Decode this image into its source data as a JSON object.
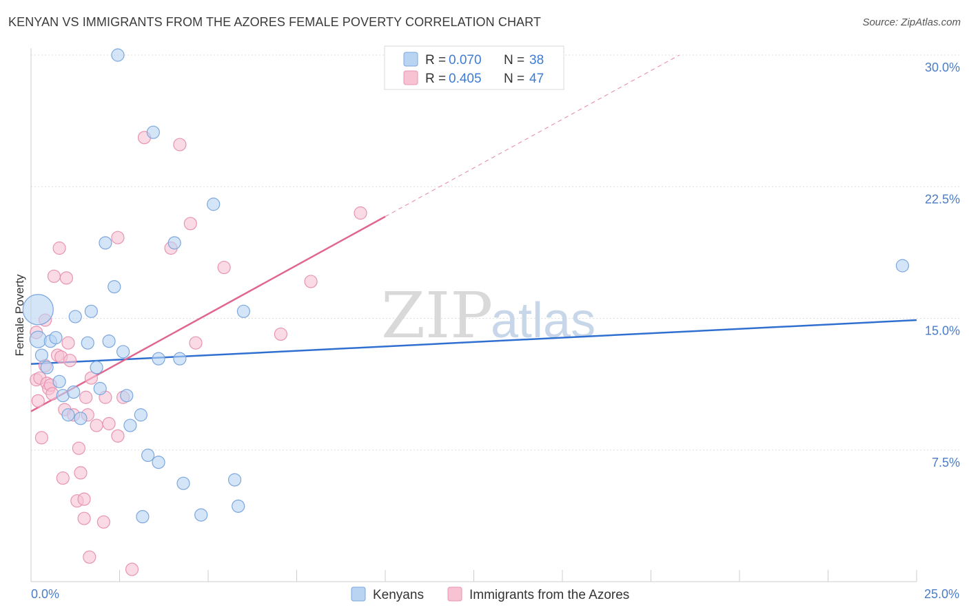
{
  "header": {
    "title": "KENYAN VS IMMIGRANTS FROM THE AZORES FEMALE POVERTY CORRELATION CHART",
    "source": "Source: ZipAtlas.com"
  },
  "watermark": {
    "zip": "ZIP",
    "atlas": "atlas"
  },
  "legend": {
    "r_label": "R =",
    "n_label": "N =",
    "entries": [
      {
        "r": "0.070",
        "n": "38"
      },
      {
        "r": "0.405",
        "n": "47"
      }
    ]
  },
  "colors": {
    "kenyan_fill": "#b9d3f3",
    "kenyan_stroke": "#7ba7de",
    "kenyan_line": "#2f6fd0",
    "azores_fill": "#f7c3d3",
    "azores_stroke": "#e893b0",
    "azores_line": "#e0668f",
    "grid": "#dddddd",
    "axis": "#cccccc"
  },
  "chart_data": {
    "type": "scatter",
    "title": "KENYAN VS IMMIGRANTS FROM THE AZORES FEMALE POVERTY CORRELATION CHART",
    "xlabel": "",
    "ylabel": "Female Poverty",
    "xlim": [
      0,
      25
    ],
    "ylim": [
      0,
      30
    ],
    "x_tick_labels": [
      "0.0%",
      "25.0%"
    ],
    "y_ticks": [
      7.5,
      15.0,
      22.5,
      30.0
    ],
    "y_tick_labels": [
      "7.5%",
      "15.0%",
      "22.5%",
      "30.0%"
    ],
    "legend_position": "top-center",
    "series": [
      {
        "name": "Kenyans",
        "r": 0.07,
        "n": 38,
        "points": [
          [
            0.2,
            15.5
          ],
          [
            0.2,
            13.8
          ],
          [
            0.3,
            12.9
          ],
          [
            0.45,
            12.2
          ],
          [
            0.55,
            13.7
          ],
          [
            0.7,
            13.9
          ],
          [
            0.8,
            11.4
          ],
          [
            0.9,
            10.6
          ],
          [
            1.05,
            9.5
          ],
          [
            1.2,
            10.8
          ],
          [
            1.25,
            15.1
          ],
          [
            1.4,
            9.3
          ],
          [
            1.6,
            13.6
          ],
          [
            1.7,
            15.4
          ],
          [
            1.85,
            12.2
          ],
          [
            1.95,
            11.0
          ],
          [
            2.1,
            19.3
          ],
          [
            2.2,
            13.7
          ],
          [
            2.35,
            16.8
          ],
          [
            2.45,
            30.0
          ],
          [
            2.6,
            13.1
          ],
          [
            2.7,
            10.6
          ],
          [
            2.8,
            8.9
          ],
          [
            3.1,
            9.5
          ],
          [
            3.15,
            3.7
          ],
          [
            3.3,
            7.2
          ],
          [
            3.45,
            25.6
          ],
          [
            3.6,
            6.8
          ],
          [
            3.6,
            12.7
          ],
          [
            4.05,
            19.3
          ],
          [
            4.2,
            12.7
          ],
          [
            4.3,
            5.6
          ],
          [
            4.8,
            3.8
          ],
          [
            5.15,
            21.5
          ],
          [
            5.75,
            5.8
          ],
          [
            5.85,
            4.3
          ],
          [
            6.0,
            15.4
          ],
          [
            24.6,
            18.0
          ]
        ]
      },
      {
        "name": "Immigrants from the Azores",
        "r": 0.405,
        "n": 47,
        "points": [
          [
            0.15,
            14.2
          ],
          [
            0.15,
            11.5
          ],
          [
            0.2,
            10.3
          ],
          [
            0.25,
            11.6
          ],
          [
            0.3,
            8.2
          ],
          [
            0.4,
            12.3
          ],
          [
            0.4,
            14.9
          ],
          [
            0.45,
            11.3
          ],
          [
            0.5,
            11.0
          ],
          [
            0.55,
            11.2
          ],
          [
            0.6,
            10.7
          ],
          [
            0.65,
            17.4
          ],
          [
            0.75,
            12.9
          ],
          [
            0.8,
            19.0
          ],
          [
            0.85,
            12.8
          ],
          [
            0.9,
            5.9
          ],
          [
            0.95,
            9.8
          ],
          [
            1.0,
            17.3
          ],
          [
            1.05,
            13.6
          ],
          [
            1.1,
            12.6
          ],
          [
            1.2,
            9.5
          ],
          [
            1.3,
            4.6
          ],
          [
            1.35,
            7.6
          ],
          [
            1.4,
            6.2
          ],
          [
            1.5,
            3.6
          ],
          [
            1.5,
            4.7
          ],
          [
            1.55,
            10.5
          ],
          [
            1.6,
            9.5
          ],
          [
            1.65,
            1.4
          ],
          [
            1.7,
            11.6
          ],
          [
            1.85,
            8.9
          ],
          [
            2.05,
            3.4
          ],
          [
            2.1,
            10.5
          ],
          [
            2.2,
            9.0
          ],
          [
            2.45,
            8.3
          ],
          [
            2.45,
            19.6
          ],
          [
            2.6,
            10.5
          ],
          [
            2.85,
            0.7
          ],
          [
            3.2,
            25.3
          ],
          [
            3.95,
            19.0
          ],
          [
            4.2,
            24.9
          ],
          [
            4.5,
            20.4
          ],
          [
            4.65,
            13.6
          ],
          [
            5.45,
            17.9
          ],
          [
            7.05,
            14.1
          ],
          [
            7.9,
            17.1
          ],
          [
            9.3,
            21.0
          ]
        ]
      }
    ],
    "trend_lines": [
      {
        "series": "Kenyans",
        "from": [
          0,
          12.4
        ],
        "to": [
          25,
          14.9
        ]
      },
      {
        "series": "Immigrants from the Azores",
        "from": [
          0,
          9.7
        ],
        "to": [
          10,
          20.8
        ],
        "dashed_extension_to": [
          18.3,
          30.0
        ]
      }
    ]
  }
}
